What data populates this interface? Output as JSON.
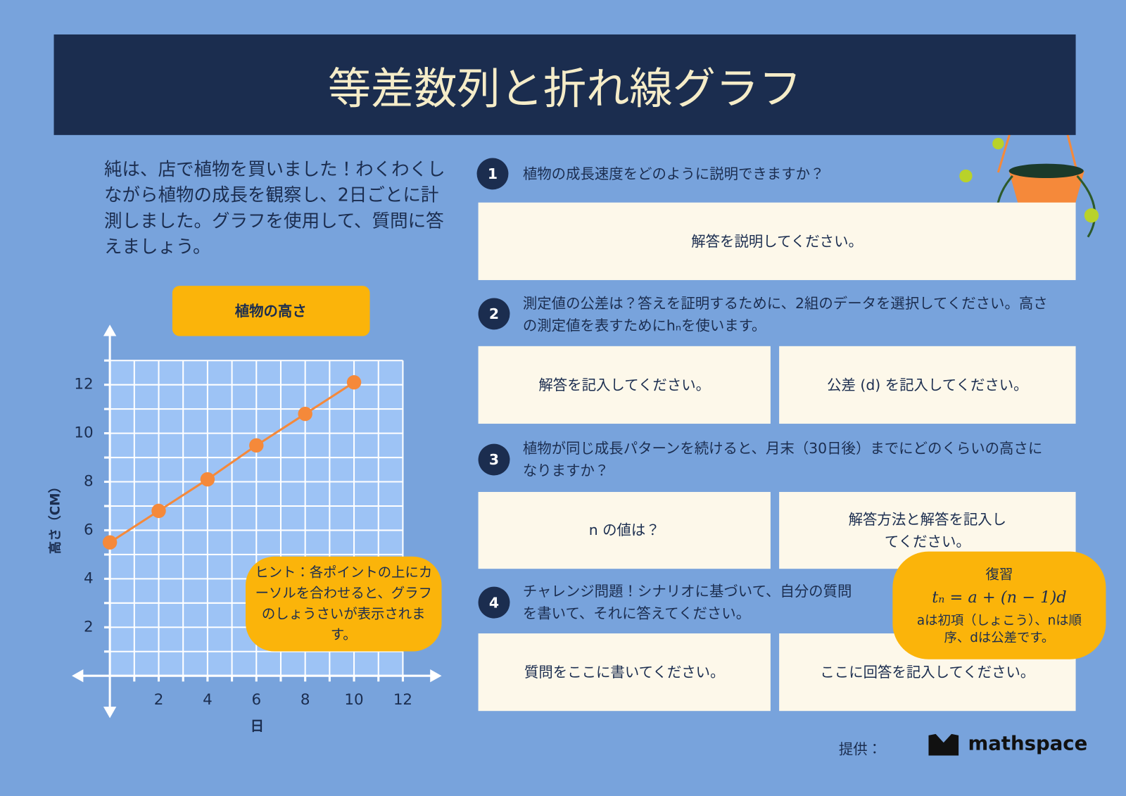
{
  "header": {
    "title": "等差数列と折れ線グラフ"
  },
  "intro": "純は、店で植物を買いました！わくわくしながら植物の成長を観察し、2日ごとに計測しました。グラフを使用して、質問に答えましょう。",
  "chart_data": {
    "type": "line",
    "title": "植物の高さ",
    "x_label": "日",
    "y_label": "高さ（CM）",
    "x": [
      0,
      2,
      4,
      6,
      8,
      10
    ],
    "series": [
      {
        "name": "植物の高さ",
        "color": "#f5893a",
        "values": [
          5.5,
          6.8,
          8.1,
          9.5,
          10.8,
          12.1
        ]
      }
    ],
    "xlim": [
      0,
      12
    ],
    "ylim": [
      0,
      13
    ],
    "xticks": [
      2,
      4,
      6,
      8,
      10,
      12
    ],
    "yticks": [
      2,
      4,
      6,
      8,
      10,
      12
    ],
    "minor_xticks": [
      1,
      3,
      5,
      7,
      9,
      11
    ],
    "minor_yticks": [
      1,
      3,
      5,
      7,
      9,
      11,
      13
    ],
    "grid": true
  },
  "hint": "ヒント：各ポイントの上にカーソルを合わせると、グラフのしょうさいが表示されます。",
  "questions": [
    {
      "number": "1",
      "text": "植物の成長速度をどのように説明できますか？",
      "answers": [
        "解答を説明してください。"
      ]
    },
    {
      "number": "2",
      "text": "測定値の公差は？答えを証明するために、2組のデータを選択してください。高さの測定値を表すためにhₙを使います。",
      "answers": [
        "解答を記入してください。",
        "公差 (d) を記入してください。"
      ]
    },
    {
      "number": "3",
      "text": "植物が同じ成長パターンを続けると、月末（30日後）までにどのくらいの高さになりますか？",
      "answers": [
        "n の値は？",
        "解答方法と解答を記入してください。"
      ]
    },
    {
      "number": "4",
      "text": "チャレンジ問題！シナリオに基づいて、自分の質問を書いて、それに答えてください。",
      "answers": [
        "質問をここに書いてください。",
        "ここに回答を記入してください。"
      ]
    }
  ],
  "review": {
    "title": "復習",
    "formula": "tₙ = a + (n − 1)d",
    "note": "aは初項（しょこう）、nは順序、dは公差です。"
  },
  "footer": {
    "credit": "提供：",
    "brand": "mathspace"
  }
}
